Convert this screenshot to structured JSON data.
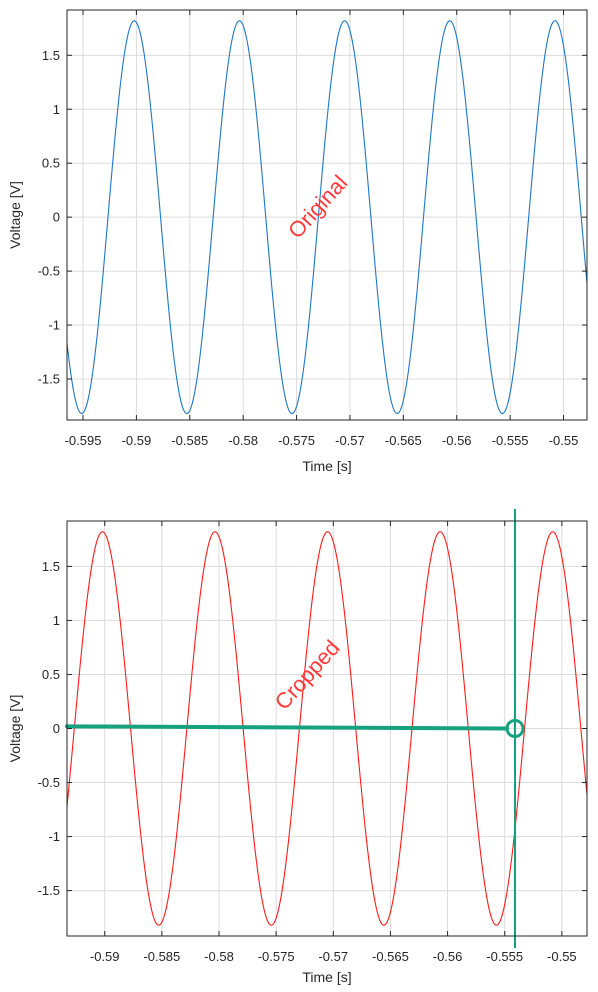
{
  "chart_data": [
    {
      "type": "line",
      "xlabel": "Time [s]",
      "ylabel": "Voltage [V]",
      "xlim": [
        -0.5965,
        -0.5478
      ],
      "ylim": [
        -1.88,
        1.92
      ],
      "xticks": [
        -0.595,
        -0.59,
        -0.585,
        -0.58,
        -0.575,
        -0.57,
        -0.565,
        -0.56,
        -0.555,
        -0.55
      ],
      "xtick_labels": [
        "-0.595",
        "-0.59",
        "-0.585",
        "-0.58",
        "-0.575",
        "-0.57",
        "-0.565",
        "-0.56",
        "-0.555",
        "-0.55"
      ],
      "yticks": [
        1.5,
        1,
        0.5,
        0,
        -0.5,
        -1,
        -1.5
      ],
      "ytick_labels": [
        "1.5",
        "1",
        "0.5",
        "0",
        "-0.5",
        "-1",
        "-1.5"
      ],
      "grid": true,
      "series": [
        {
          "color": "#1f77c4",
          "amplitude": 1.82,
          "period": 0.00985,
          "peak_time": -0.5902,
          "x_start": -0.5965,
          "x_end": -0.5478
        }
      ],
      "annotations": [
        {
          "text": "Original",
          "x": -0.5725,
          "y": 0.05,
          "color": "#ff3b3b",
          "rotation": -48
        }
      ]
    },
    {
      "type": "line",
      "xlabel": "Time [s]",
      "ylabel": "Voltage [V]",
      "xlim": [
        -0.5933,
        -0.5478
      ],
      "ylim": [
        -1.92,
        1.92
      ],
      "xticks": [
        -0.59,
        -0.585,
        -0.58,
        -0.575,
        -0.57,
        -0.565,
        -0.56,
        -0.555,
        -0.55
      ],
      "xtick_labels": [
        "-0.59",
        "-0.585",
        "-0.58",
        "-0.575",
        "-0.57",
        "-0.565",
        "-0.56",
        "-0.555",
        "-0.55"
      ],
      "yticks": [
        1.5,
        1,
        0.5,
        0,
        -0.5,
        -1,
        -1.5
      ],
      "ytick_labels": [
        "1.5",
        "1",
        "0.5",
        "0",
        "-0.5",
        "-1",
        "-1.5"
      ],
      "grid": true,
      "series": [
        {
          "color": "#ff1a1a",
          "amplitude": 1.82,
          "period": 0.00985,
          "peak_time": -0.5902,
          "x_start": -0.5933,
          "x_end": -0.5478
        }
      ],
      "annotations": [
        {
          "text": "Cropped",
          "x": -0.5718,
          "y": 0.45,
          "color": "#ff3b3b",
          "rotation": -48
        }
      ],
      "markers": {
        "color": "#17a27f",
        "horizontal_line": {
          "x": [
            -0.5933,
            -0.5548
          ],
          "y": [
            0.02,
            0.0
          ]
        },
        "vertical_line_x": -0.5541,
        "circle": {
          "x": -0.5541,
          "y": 0.0
        }
      }
    }
  ]
}
